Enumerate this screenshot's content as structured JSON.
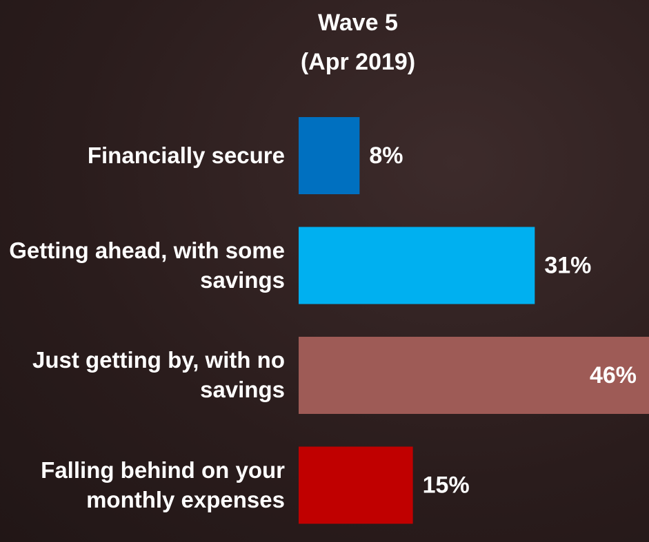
{
  "chart_data": {
    "type": "bar",
    "orientation": "horizontal",
    "title": "Wave 5",
    "subtitle": "(Apr 2019)",
    "categories": [
      "Financially secure",
      "Getting ahead, with some savings",
      "Just getting by, with no savings",
      "Falling behind on your monthly expenses"
    ],
    "values": [
      8,
      31,
      46,
      15
    ],
    "value_labels": [
      "8%",
      "31%",
      "46%",
      "15%"
    ],
    "colors": [
      "#0070c0",
      "#00b0f0",
      "#9e5b56",
      "#c00000"
    ],
    "xlim": [
      0,
      46
    ]
  }
}
